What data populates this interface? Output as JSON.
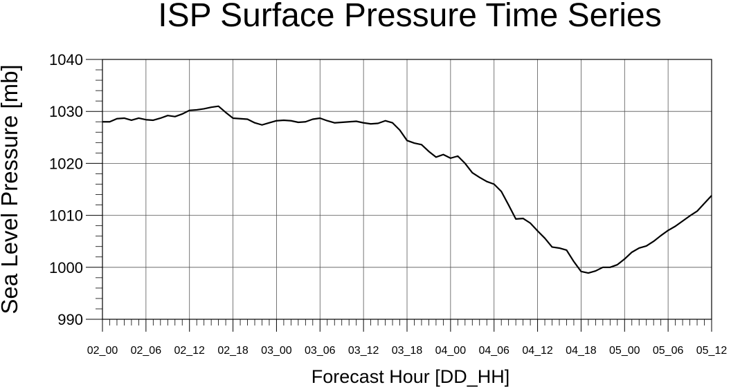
{
  "chart_data": {
    "type": "line",
    "title": "ISP Surface Pressure Time Series",
    "xlabel": "Forecast Hour [DD_HH]",
    "ylabel": "Sea Level Pressure [mb]",
    "x_tick_labels": [
      "02_00",
      "02_06",
      "02_12",
      "02_18",
      "03_00",
      "03_06",
      "03_12",
      "03_18",
      "04_00",
      "04_06",
      "04_12",
      "04_18",
      "05_00",
      "05_06",
      "05_12"
    ],
    "x_unit": "forecast hours from 02_00",
    "xlim": [
      0,
      84
    ],
    "ylim": [
      990,
      1040
    ],
    "y_ticks": [
      990,
      1000,
      1010,
      1020,
      1030,
      1040
    ],
    "grid": true,
    "series": [
      {
        "color": "#000000",
        "x": [
          0,
          1,
          2,
          3,
          4,
          5,
          6,
          7,
          8,
          9,
          10,
          11,
          12,
          13,
          14,
          15,
          16,
          17,
          18,
          19,
          20,
          21,
          22,
          23,
          24,
          25,
          26,
          27,
          28,
          29,
          30,
          31,
          32,
          33,
          34,
          35,
          36,
          37,
          38,
          39,
          40,
          41,
          42,
          43,
          44,
          45,
          46,
          47,
          48,
          49,
          50,
          51,
          52,
          53,
          54,
          55,
          56,
          57,
          58,
          59,
          60,
          61,
          62,
          63,
          64,
          65,
          66,
          67,
          68,
          69,
          70,
          71,
          72,
          73,
          74,
          75,
          76,
          77,
          78,
          79,
          80,
          81,
          82,
          83,
          84
        ],
        "y": [
          1028.0,
          1028.0,
          1028.6,
          1028.7,
          1028.3,
          1028.7,
          1028.4,
          1028.3,
          1028.7,
          1029.2,
          1029.0,
          1029.5,
          1030.2,
          1030.3,
          1030.5,
          1030.8,
          1031.0,
          1029.8,
          1028.7,
          1028.6,
          1028.5,
          1027.8,
          1027.4,
          1027.8,
          1028.2,
          1028.3,
          1028.2,
          1027.9,
          1028.0,
          1028.5,
          1028.7,
          1028.2,
          1027.8,
          1027.9,
          1028.0,
          1028.1,
          1027.8,
          1027.6,
          1027.7,
          1028.2,
          1027.8,
          1026.4,
          1024.4,
          1023.9,
          1023.6,
          1022.3,
          1021.2,
          1021.7,
          1021.0,
          1021.4,
          1020.0,
          1018.2,
          1017.3,
          1016.5,
          1016.0,
          1014.6,
          1012.0,
          1009.3,
          1009.4,
          1008.5,
          1007.0,
          1005.6,
          1003.9,
          1003.7,
          1003.3,
          1001.1,
          999.2,
          998.9,
          999.3,
          1000.0,
          1000.0,
          1000.5,
          1001.6,
          1002.9,
          1003.7,
          1004.1,
          1005.0,
          1006.1,
          1007.1,
          1007.9,
          1008.9,
          1009.9,
          1010.8,
          1012.3,
          1013.8
        ]
      }
    ]
  }
}
